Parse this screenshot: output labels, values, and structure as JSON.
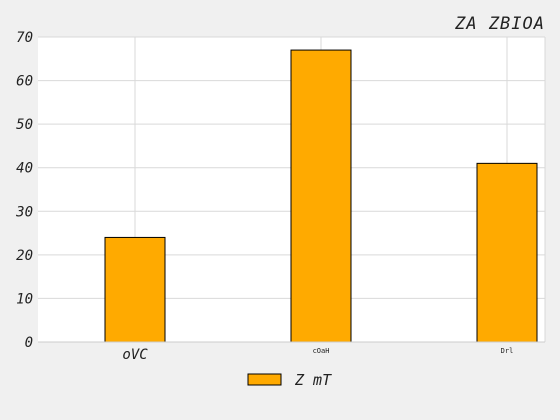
{
  "chart_data": {
    "type": "bar",
    "title": "ZA ZBIOA",
    "xlabel": "",
    "ylabel": "",
    "categories": [
      "oVC",
      "cOaH",
      "Drl"
    ],
    "series": [
      {
        "name": "Z mT",
        "values": [
          24,
          67,
          41
        ],
        "color": "#ffaa00"
      }
    ],
    "ylim": [
      0,
      70
    ],
    "yticks": [
      0,
      10,
      20,
      30,
      40,
      50,
      60,
      70
    ],
    "grid": true,
    "legend_position": "bottom-center"
  }
}
